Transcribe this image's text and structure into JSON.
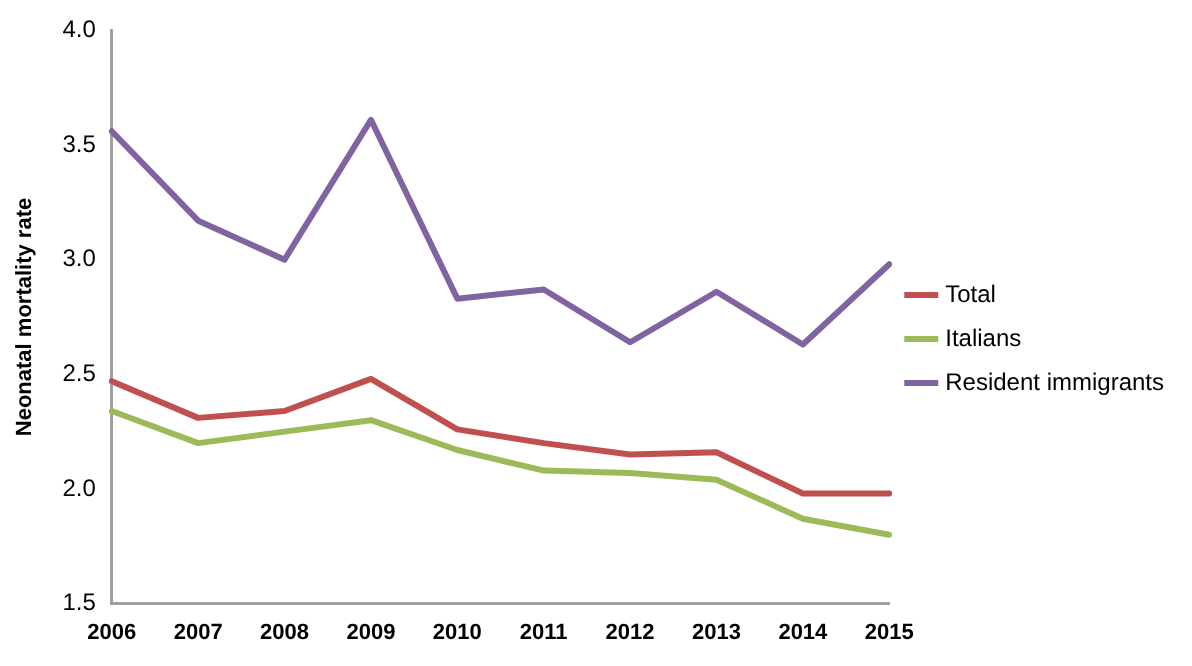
{
  "chart_data": {
    "type": "line",
    "ylabel": "Neonatal mortality rate",
    "categories": [
      "2006",
      "2007",
      "2008",
      "2009",
      "2010",
      "2011",
      "2012",
      "2013",
      "2014",
      "2015"
    ],
    "series": [
      {
        "name": "Total",
        "color": "#c0504d",
        "values": [
          2.47,
          2.31,
          2.34,
          2.48,
          2.26,
          2.2,
          2.15,
          2.16,
          1.98,
          1.98
        ]
      },
      {
        "name": "Italians",
        "color": "#9bbb59",
        "values": [
          2.34,
          2.2,
          2.25,
          2.3,
          2.17,
          2.08,
          2.07,
          2.04,
          1.87,
          1.8
        ]
      },
      {
        "name": "Resident immigrants",
        "color": "#8064a2",
        "values": [
          3.56,
          3.17,
          3.0,
          3.61,
          2.83,
          2.87,
          2.64,
          2.86,
          2.63,
          2.98
        ]
      }
    ],
    "ylim": [
      1.5,
      4.0
    ],
    "yticks": [
      1.5,
      {
        "value": 2,
        "label": "2.0"
      },
      2.5,
      {
        "value": 3,
        "label": "3.0"
      },
      3.5,
      {
        "value": 4,
        "label": "4.0"
      }
    ],
    "grid": false,
    "legend": "right",
    "marker": "none",
    "line_style": "solid"
  }
}
